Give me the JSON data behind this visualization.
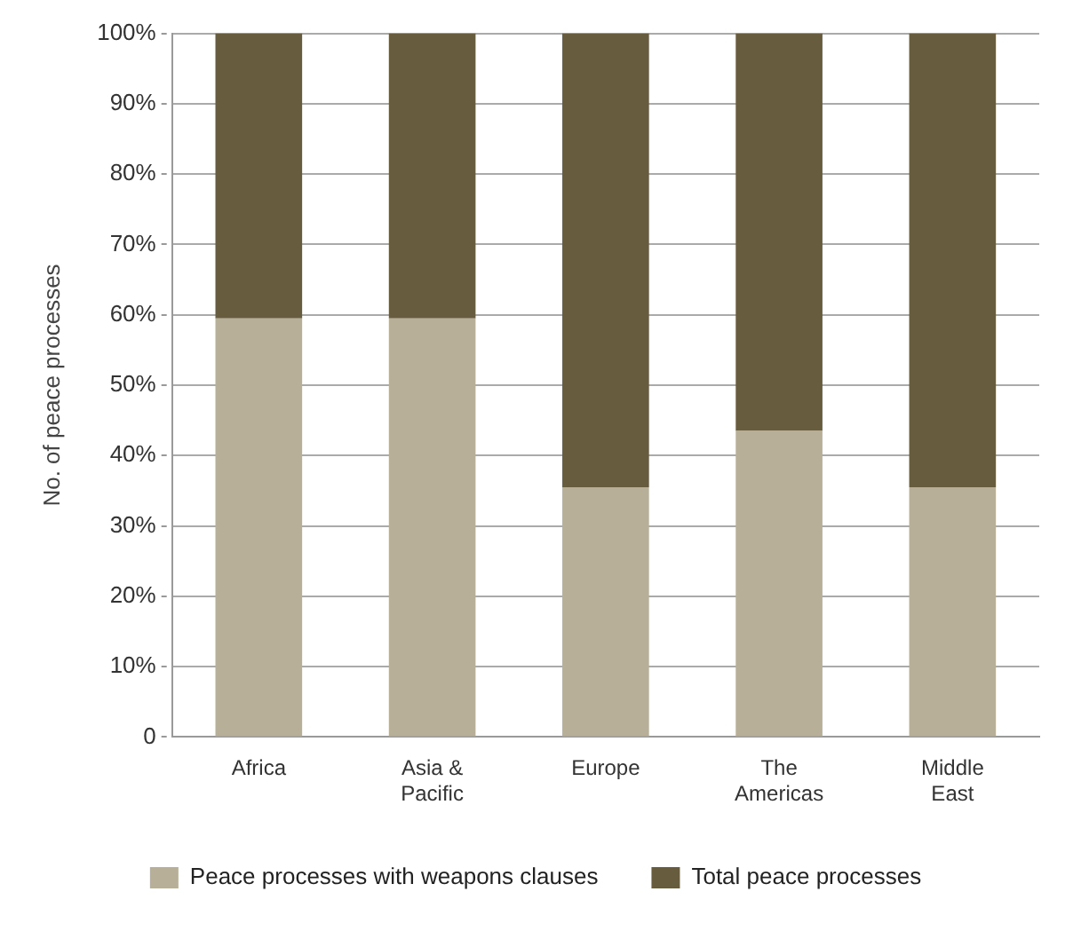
{
  "chart_data": {
    "type": "bar",
    "stacked": true,
    "ylabel": "No. of peace processes",
    "categories": [
      "Africa",
      "Asia & Pacific",
      "Europe",
      "The Americas",
      "Middle East"
    ],
    "series": [
      {
        "name": "Peace processes with weapons clauses",
        "color": "#b7af97",
        "values": [
          59.5,
          59.5,
          35.5,
          43.5,
          35.5
        ]
      },
      {
        "name": "Total peace processes",
        "color": "#685c3f",
        "values": [
          40.5,
          40.5,
          64.5,
          56.5,
          64.5
        ]
      }
    ],
    "ylim": [
      0,
      100
    ],
    "yticks": [
      0,
      {
        "value": 10,
        "label": "10%"
      },
      {
        "value": 20,
        "label": "20%"
      },
      {
        "value": 30,
        "label": "30%"
      },
      {
        "value": 40,
        "label": "40%"
      },
      {
        "value": 50,
        "label": "50%"
      },
      {
        "value": 60,
        "label": "60%"
      },
      {
        "value": 70,
        "label": "70%"
      },
      {
        "value": 80,
        "label": "80%"
      },
      {
        "value": 90,
        "label": "90%"
      },
      {
        "value": 100,
        "label": "100%"
      }
    ],
    "grid": "y",
    "legend": "bottom"
  }
}
